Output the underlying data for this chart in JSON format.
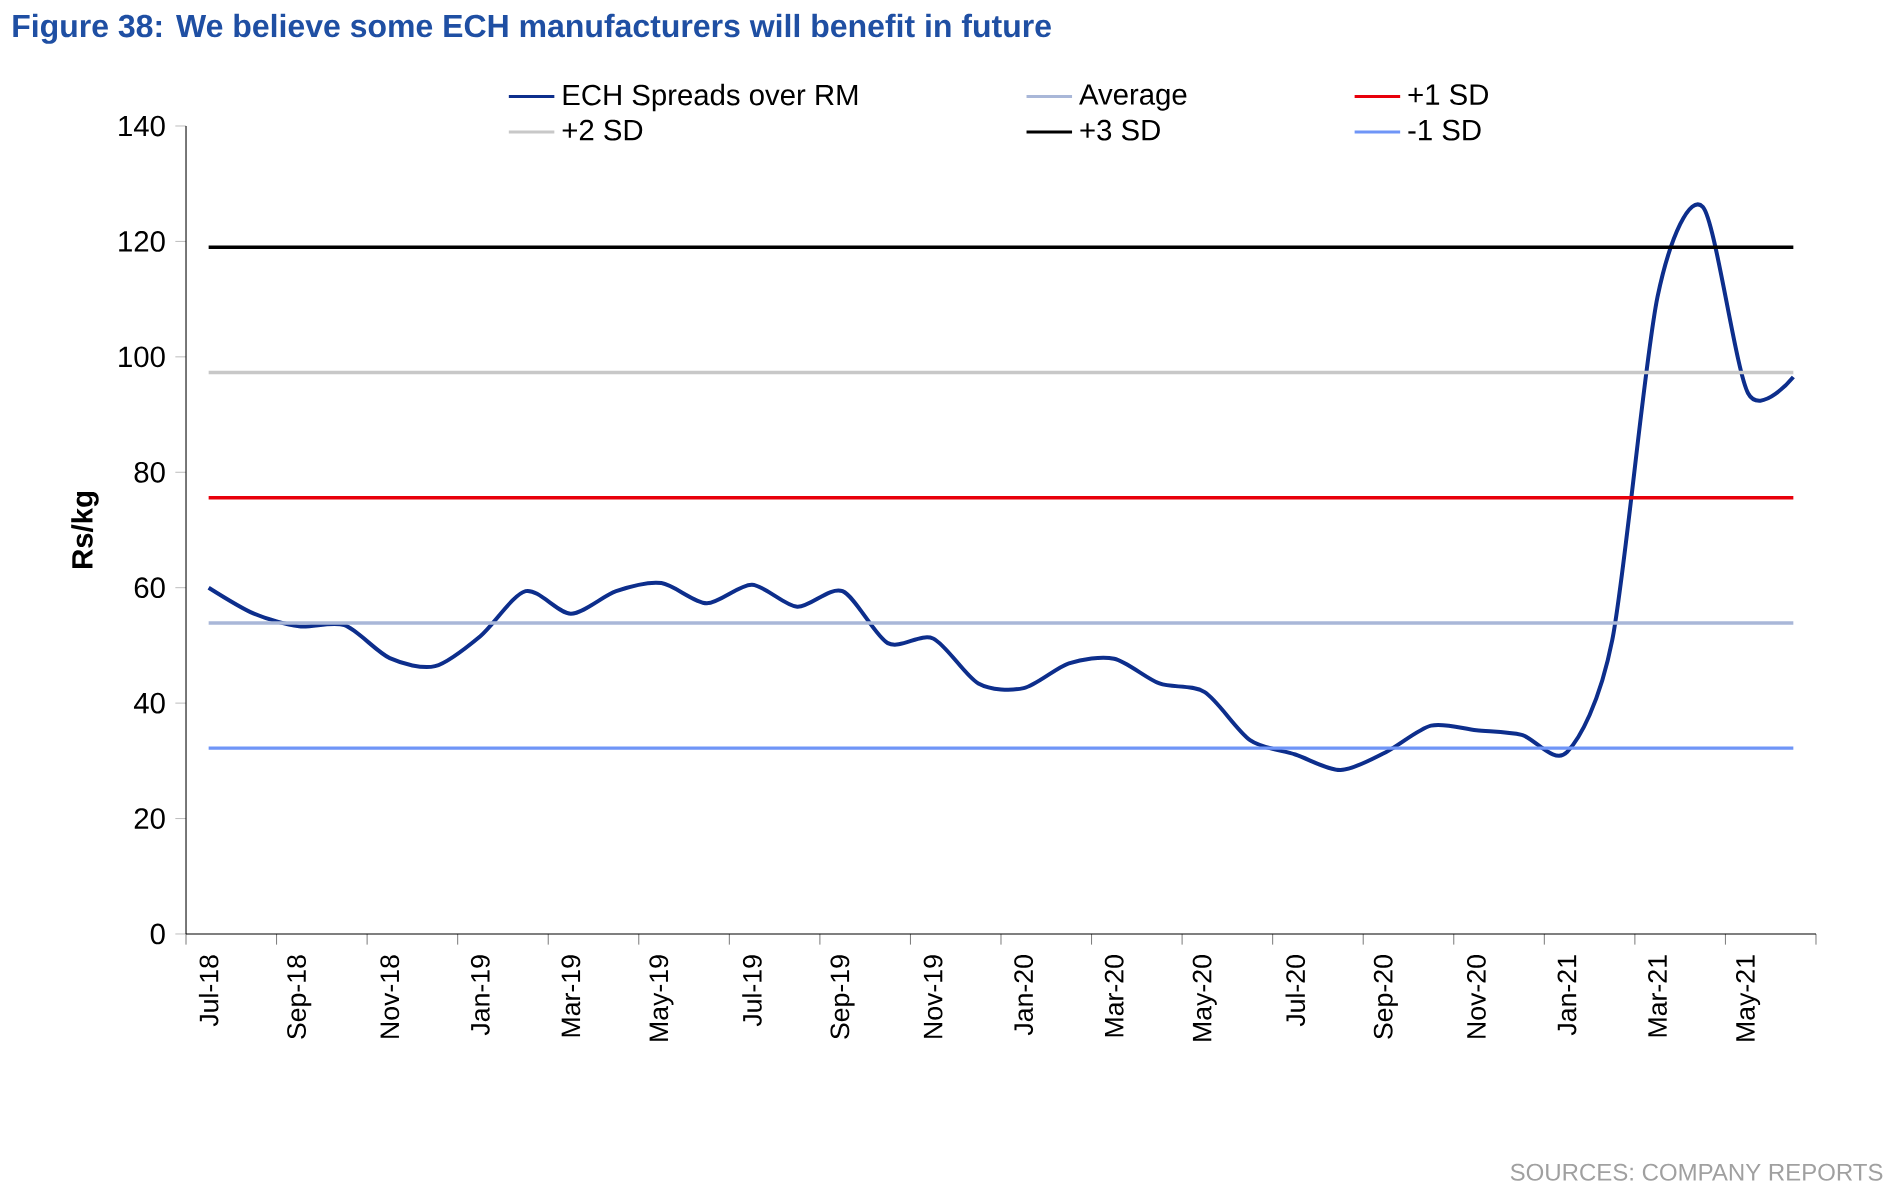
{
  "chart_data": {
    "type": "line",
    "title": "Figure 38: We believe some ECH manufacturers will benefit in future",
    "ylabel": "Rs/kg",
    "categories": [
      "Jul-18",
      null,
      "Sep-18",
      null,
      "Nov-18",
      null,
      "Jan-19",
      null,
      "Mar-19",
      null,
      "May-19",
      null,
      "Jul-19",
      null,
      "Sep-19",
      null,
      "Nov-19",
      null,
      "Jan-20",
      null,
      "Mar-20",
      null,
      "May-20",
      null,
      "Jul-20",
      null,
      "Sep-20",
      null,
      "Nov-20",
      null,
      "Jan-21",
      null,
      "Mar-21",
      null,
      "May-21",
      null
    ],
    "series": [
      {
        "name": "ECH Spreads over RM",
        "color": "#0d2e8c",
        "values": [
          60,
          55.5,
          53.3,
          53.5,
          47.8,
          46.4,
          51.6,
          59.4,
          55.5,
          59.4,
          60.8,
          57.3,
          60.5,
          56.7,
          59.4,
          50.4,
          51.2,
          43.4,
          42.6,
          46.9,
          47.7,
          43.4,
          41.9,
          33.6,
          31.1,
          28.4,
          31.5,
          36.1,
          35.3,
          34.5,
          31.5,
          50.9,
          110.4,
          126,
          93.7,
          96.5
        ]
      }
    ],
    "ylim": [
      0,
      140
    ],
    "yticks": [
      0,
      20,
      40,
      60,
      80,
      100,
      120,
      140
    ],
    "ref_lines": [
      {
        "axis": "y",
        "value": 53.9,
        "label": "Average",
        "color": "#a9b7d8"
      },
      {
        "axis": "y",
        "value": 75.6,
        "label": "+1 SD",
        "color": "#e8000b"
      },
      {
        "axis": "y",
        "value": 97.3,
        "label": "+2 SD",
        "color": "#c8c8c8"
      },
      {
        "axis": "y",
        "value": 119,
        "label": "+3 SD",
        "color": "#000000"
      },
      {
        "axis": "y",
        "value": 32.2,
        "label": "-1 SD",
        "color": "#6f95f7"
      }
    ],
    "legend": "top",
    "annotations": [
      "SOURCES: COMPANY REPORTS"
    ]
  }
}
